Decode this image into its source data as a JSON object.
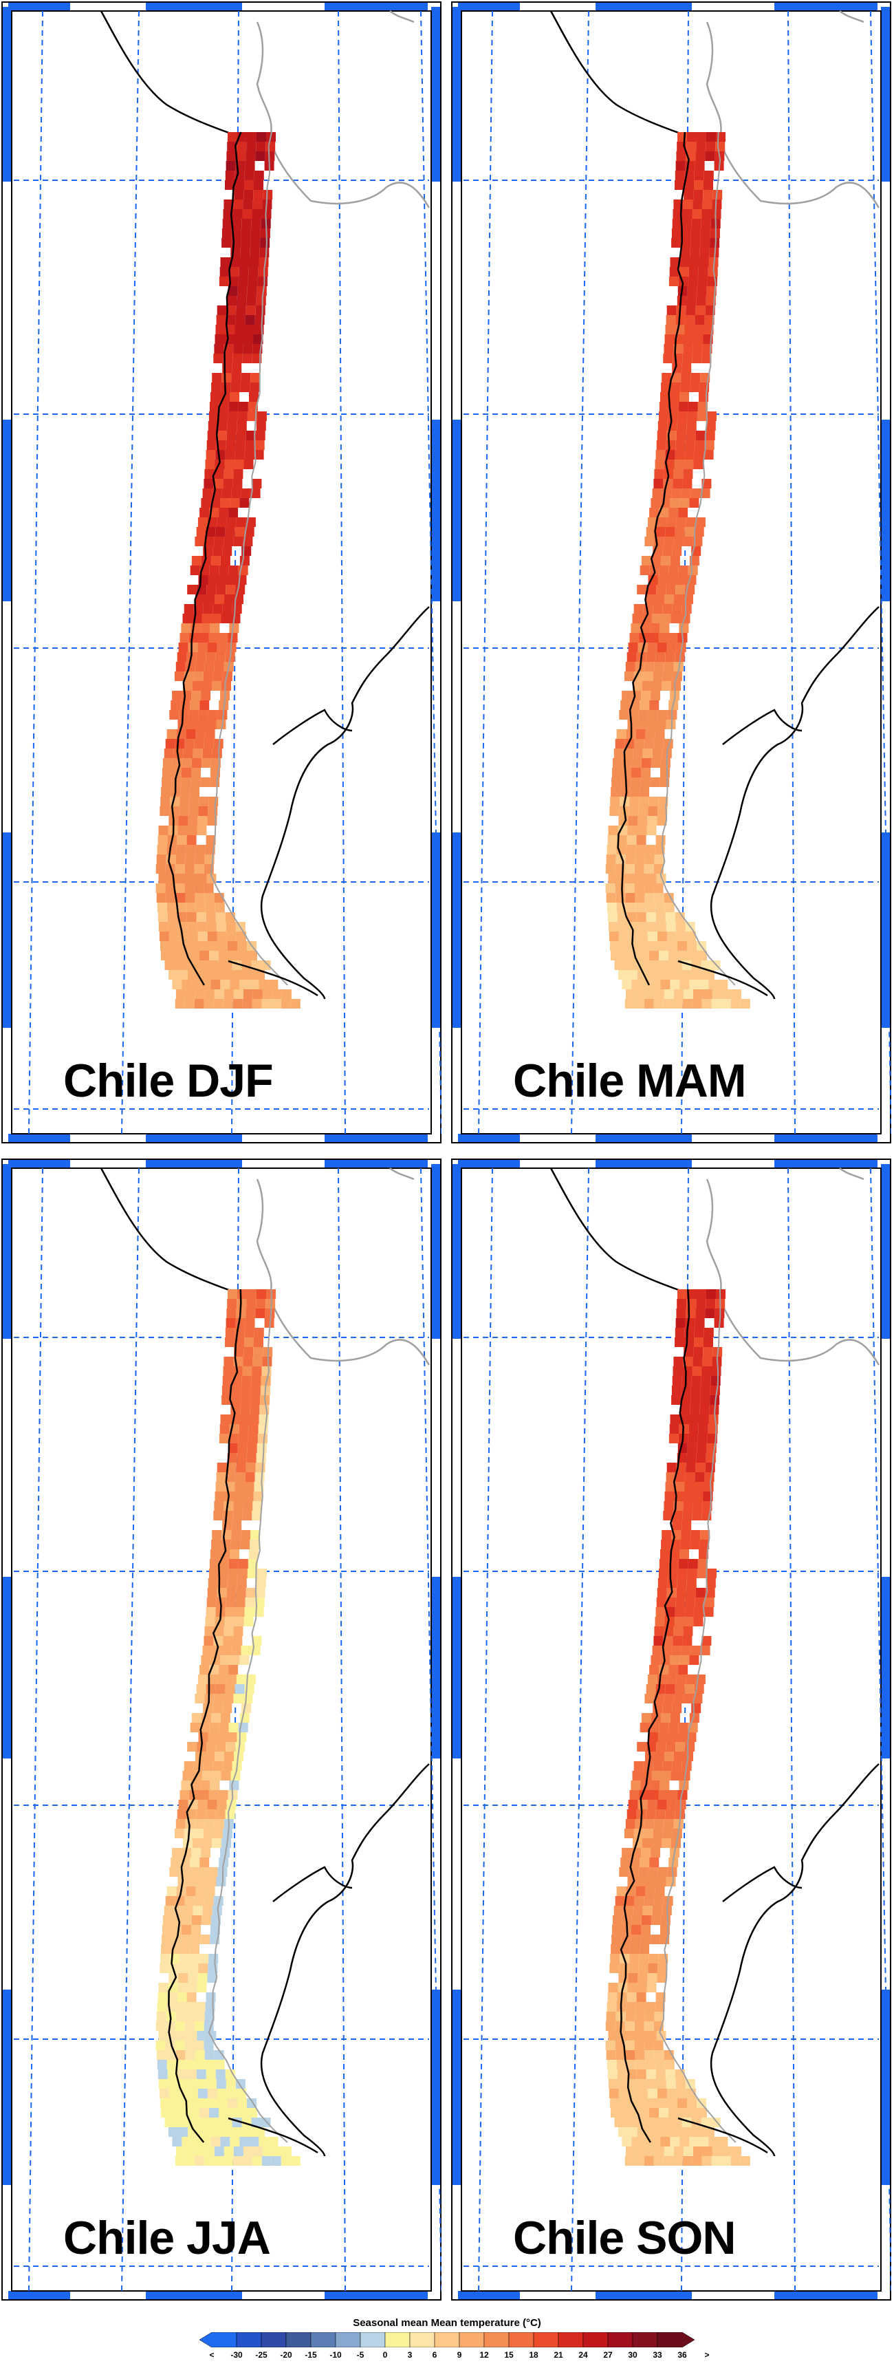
{
  "panels": [
    {
      "title": "Chile DJF",
      "season": "DJF",
      "profile": "djf"
    },
    {
      "title": "Chile MAM",
      "season": "MAM",
      "profile": "mam"
    },
    {
      "title": "Chile JJA",
      "season": "JJA",
      "profile": "jja"
    },
    {
      "title": "Chile SON",
      "season": "SON",
      "profile": "son"
    }
  ],
  "colorbar": {
    "title": "Seasonal mean Mean temperature (°C)",
    "labels": [
      "<",
      "-30",
      "-25",
      "-20",
      "-15",
      "-10",
      "-5",
      "0",
      "3",
      "6",
      "9",
      "12",
      "15",
      "18",
      "21",
      "24",
      "27",
      "30",
      "33",
      "36",
      ">"
    ],
    "colors": [
      "#1f6cf0",
      "#2553c9",
      "#2f4aa8",
      "#3f5b99",
      "#5b7fb4",
      "#87a8cf",
      "#b9d3e6",
      "#fbf39a",
      "#fde4a8",
      "#fcc98b",
      "#f9ac6c",
      "#f58e55",
      "#f26d3f",
      "#ec4b2c",
      "#d92a1f",
      "#c0181b",
      "#a10e1c",
      "#851020",
      "#6b0d1a"
    ]
  },
  "colors": {
    "frame": "#1a66ee",
    "gridline": "#1a66ee",
    "coastline": "#000000",
    "border": "#a0a0a0",
    "title": "#000000"
  }
}
